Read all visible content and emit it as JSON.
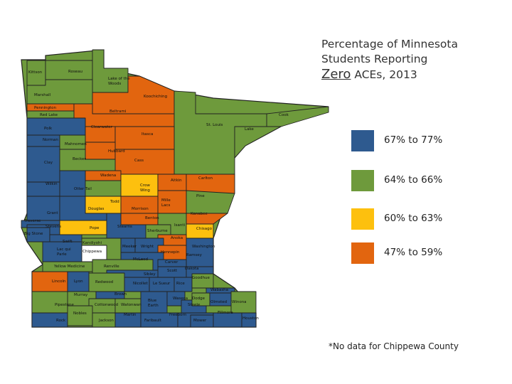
{
  "title": {
    "line1": "Percentage of Minnesota",
    "line2": "Students Reporting",
    "zero": "Zero",
    "line3_rest": " ACEs, 2013"
  },
  "colors": {
    "blue": "#2E5A8F",
    "green": "#6E9A3C",
    "yellow": "#FDC00E",
    "orange": "#E2650F"
  },
  "legend": [
    {
      "label": "67% to 77%",
      "color": "#2E5A8F"
    },
    {
      "label": "64% to 66%",
      "color": "#6E9A3C"
    },
    {
      "label": "60% to 63%",
      "color": "#FDC00E"
    },
    {
      "label": "47% to 59%",
      "color": "#E2650F"
    }
  ],
  "counties": [
    {
      "name": "Kittson",
      "cat": "green"
    },
    {
      "name": "Roseau",
      "cat": "green"
    },
    {
      "name": "Lake of the Woods",
      "cat": "green"
    },
    {
      "name": "Marshall",
      "cat": "green"
    },
    {
      "name": "Koochiching",
      "cat": "orange"
    },
    {
      "name": "Pennington",
      "cat": "orange"
    },
    {
      "name": "Beltrami",
      "cat": "orange"
    },
    {
      "name": "Red Lake",
      "cat": "green"
    },
    {
      "name": "Cook",
      "cat": "green"
    },
    {
      "name": "St. Louis",
      "cat": "green"
    },
    {
      "name": "Lake",
      "cat": "green"
    },
    {
      "name": "Polk",
      "cat": "blue"
    },
    {
      "name": "Clearwater",
      "cat": "orange"
    },
    {
      "name": "Itasca",
      "cat": "orange"
    },
    {
      "name": "Norman",
      "cat": "blue"
    },
    {
      "name": "Mahnomen",
      "cat": "green"
    },
    {
      "name": "Hubbard",
      "cat": "orange"
    },
    {
      "name": "Cass",
      "cat": "orange"
    },
    {
      "name": "Clay",
      "cat": "blue"
    },
    {
      "name": "Becker",
      "cat": "green"
    },
    {
      "name": "Wadena",
      "cat": "orange"
    },
    {
      "name": "Crow Wing",
      "cat": "yellow"
    },
    {
      "name": "Aitkin",
      "cat": "orange"
    },
    {
      "name": "Carlton",
      "cat": "orange"
    },
    {
      "name": "Pine",
      "cat": "green"
    },
    {
      "name": "Wilkin",
      "cat": "blue"
    },
    {
      "name": "Otter Tail",
      "cat": "blue"
    },
    {
      "name": "Todd",
      "cat": "yellow"
    },
    {
      "name": "Mille Lacs",
      "cat": "orange"
    },
    {
      "name": "Kanabec",
      "cat": "orange"
    },
    {
      "name": "Grant",
      "cat": "blue"
    },
    {
      "name": "Douglas",
      "cat": "blue"
    },
    {
      "name": "Morrison",
      "cat": "orange"
    },
    {
      "name": "Benton",
      "cat": "orange"
    },
    {
      "name": "Isanti",
      "cat": "green"
    },
    {
      "name": "Chisago",
      "cat": "yellow"
    },
    {
      "name": "Traverse",
      "cat": "blue"
    },
    {
      "name": "Stevens",
      "cat": "blue"
    },
    {
      "name": "Pope",
      "cat": "yellow"
    },
    {
      "name": "Stearns",
      "cat": "blue"
    },
    {
      "name": "Sherburne",
      "cat": "green"
    },
    {
      "name": "Anoka",
      "cat": "orange"
    },
    {
      "name": "Big Stone",
      "cat": "blue"
    },
    {
      "name": "Swift",
      "cat": "blue"
    },
    {
      "name": "Kandiyohi",
      "cat": "green"
    },
    {
      "name": "Meeker",
      "cat": "blue"
    },
    {
      "name": "Wright",
      "cat": "blue"
    },
    {
      "name": "Hennepin",
      "cat": "orange"
    },
    {
      "name": "Ramsey",
      "cat": "orange"
    },
    {
      "name": "Washington",
      "cat": "blue"
    },
    {
      "name": "Lac qui Parle",
      "cat": "blue"
    },
    {
      "name": "Chippewa",
      "cat": "white"
    },
    {
      "name": "McLeod",
      "cat": "blue"
    },
    {
      "name": "Carver",
      "cat": "blue"
    },
    {
      "name": "Scott",
      "cat": "blue"
    },
    {
      "name": "Dakota",
      "cat": "blue"
    },
    {
      "name": "Yellow Medicine",
      "cat": "green"
    },
    {
      "name": "Renville",
      "cat": "green"
    },
    {
      "name": "Sibley",
      "cat": "blue"
    },
    {
      "name": "Lincoln",
      "cat": "orange"
    },
    {
      "name": "Lyon",
      "cat": "blue"
    },
    {
      "name": "Redwood",
      "cat": "green"
    },
    {
      "name": "Nicollet",
      "cat": "blue"
    },
    {
      "name": "Le Sueur",
      "cat": "blue"
    },
    {
      "name": "Rice",
      "cat": "blue"
    },
    {
      "name": "Goodhue",
      "cat": "green"
    },
    {
      "name": "Wabasha",
      "cat": "blue"
    },
    {
      "name": "Murray",
      "cat": "green"
    },
    {
      "name": "Brown",
      "cat": "blue"
    },
    {
      "name": "Pipestone",
      "cat": "green"
    },
    {
      "name": "Cottonwood",
      "cat": "green"
    },
    {
      "name": "Watonwan",
      "cat": "green"
    },
    {
      "name": "Blue Earth",
      "cat": "blue"
    },
    {
      "name": "Waseca",
      "cat": "blue"
    },
    {
      "name": "Steele",
      "cat": "blue"
    },
    {
      "name": "Dodge",
      "cat": "green"
    },
    {
      "name": "Olmsted",
      "cat": "blue"
    },
    {
      "name": "Winona",
      "cat": "green"
    },
    {
      "name": "Rock",
      "cat": "blue"
    },
    {
      "name": "Nobles",
      "cat": "green"
    },
    {
      "name": "Jackson",
      "cat": "green"
    },
    {
      "name": "Martin",
      "cat": "blue"
    },
    {
      "name": "Faribault",
      "cat": "blue"
    },
    {
      "name": "Freeborn",
      "cat": "blue"
    },
    {
      "name": "Mower",
      "cat": "blue"
    },
    {
      "name": "Fillmore",
      "cat": "blue"
    },
    {
      "name": "Houston",
      "cat": "blue"
    }
  ],
  "footnote": "*No data for Chippewa County"
}
